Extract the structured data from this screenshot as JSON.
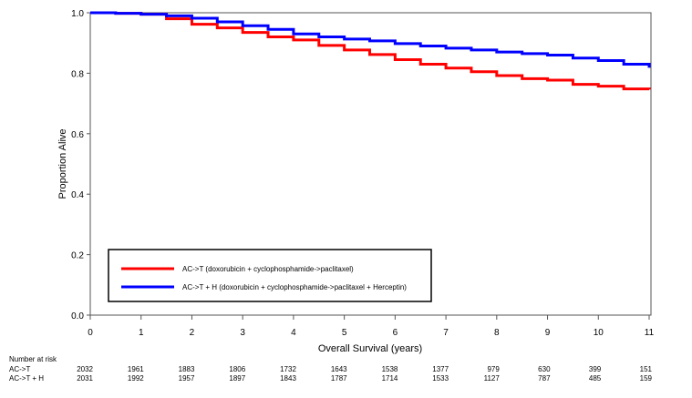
{
  "chart_data": {
    "type": "line",
    "title": "",
    "xlabel": "Overall Survival (years)",
    "ylabel": "Proportion Alive",
    "xlim": [
      0,
      11
    ],
    "ylim": [
      0,
      1.0
    ],
    "x_ticks": [
      "0",
      "1",
      "2",
      "3",
      "4",
      "5",
      "6",
      "7",
      "8",
      "9",
      "10",
      "11"
    ],
    "y_ticks": [
      "0.0",
      "0.2",
      "0.4",
      "0.6",
      "0.8",
      "1.0"
    ],
    "grid": false,
    "legend_placement": "lower-left inside",
    "series": [
      {
        "name": "AC->T (doxorubicin + cyclophosphamide->paclitaxel)",
        "color": "#ff0000",
        "x": [
          0,
          0.5,
          1,
          1.5,
          2,
          2.5,
          3,
          3.5,
          4,
          4.5,
          5,
          5.5,
          6,
          6.5,
          7,
          7.5,
          8,
          8.5,
          9,
          9.5,
          10,
          10.5,
          11
        ],
        "y": [
          1.0,
          0.998,
          0.995,
          0.98,
          0.962,
          0.95,
          0.935,
          0.92,
          0.91,
          0.892,
          0.877,
          0.862,
          0.845,
          0.83,
          0.817,
          0.805,
          0.792,
          0.782,
          0.777,
          0.763,
          0.757,
          0.748,
          0.746
        ]
      },
      {
        "name": "AC->T + H (doxorubicin + cyclophosphamide->paclitaxel + Herceptin)",
        "color": "#0000ff",
        "x": [
          0,
          0.5,
          1,
          1.5,
          2,
          2.5,
          3,
          3.5,
          4,
          4.5,
          5,
          5.5,
          6,
          6.5,
          7,
          7.5,
          8,
          8.5,
          9,
          9.5,
          10,
          10.5,
          11
        ],
        "y": [
          1.0,
          0.998,
          0.995,
          0.99,
          0.982,
          0.97,
          0.957,
          0.945,
          0.93,
          0.92,
          0.913,
          0.907,
          0.898,
          0.89,
          0.883,
          0.877,
          0.87,
          0.865,
          0.86,
          0.85,
          0.842,
          0.83,
          0.818
        ]
      }
    ]
  },
  "risk_table": {
    "title": "Number at risk",
    "rows": [
      {
        "label": "AC->T",
        "values": [
          "2032",
          "1961",
          "1883",
          "1806",
          "1732",
          "1643",
          "1538",
          "1377",
          "979",
          "630",
          "399",
          "151"
        ]
      },
      {
        "label": "AC->T + H",
        "values": [
          "2031",
          "1992",
          "1957",
          "1897",
          "1843",
          "1787",
          "1714",
          "1533",
          "1127",
          "787",
          "485",
          "159"
        ]
      }
    ]
  }
}
